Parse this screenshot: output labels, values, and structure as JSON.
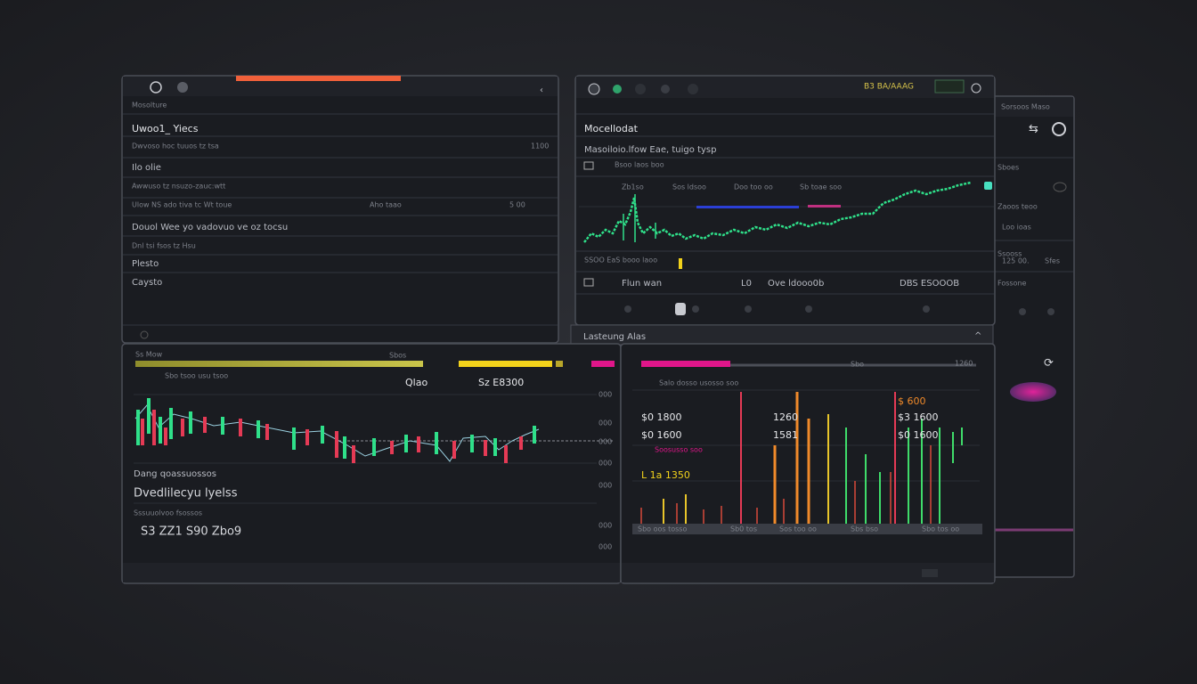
{
  "left_panel": {
    "tab": "Mosolture",
    "title": "Uwoo1_ Yiecs",
    "rows": [
      "Dwvoso hoc tuuos tz tsa",
      "Ilo olie",
      "Awwuso tz nsuzo-zauc:wtt",
      "Ulow NS ado tiva tc Wt toue",
      "Douol Wee yo vadovuo ve oz tocsu",
      "Dnl tsi fsos tz Hsu",
      "Plesto",
      "Caysto"
    ],
    "row_values": [
      "1100",
      "Aho taao",
      "5 00"
    ]
  },
  "market_panel": {
    "header_value": "B3 BA/AAAG",
    "title": "Mocellodat",
    "subtitle": "Masoiloio.lfow Eae, tuigo tysp",
    "caption": "Bsoo laos boo",
    "chart_labels": [
      "Zb1so",
      "Sos ldsoo",
      "Doo too oo",
      "Sb toae soo"
    ],
    "summary": "SSOO EaS booo laoo",
    "footer": [
      "Flun wan",
      "L0",
      "Ove ldooo0b",
      "DBS ESOOOB"
    ]
  },
  "side_panel": {
    "title": "Sorsoos Maso",
    "items": [
      "Sboes",
      "Zaoos teoo",
      "Loo ioas",
      "Ssooss"
    ],
    "values": [
      "125 00.",
      "Sfes"
    ],
    "footer": "Fossone"
  },
  "lower_header": "Lasteung Alas",
  "chart_left": {
    "tab": "Ss Mow",
    "tab_value": "Sbos",
    "caption": "Sbo tsoo usu tsoo",
    "labels": [
      "Qlao",
      "Sz E8300"
    ],
    "axis": [
      "000",
      "000",
      "000",
      "000",
      "000",
      "000",
      "000"
    ],
    "info": [
      "Dang qoassuossos",
      "Dvedlilecyu lyelss",
      "Sssuuolvoo fsossos",
      "S3 ZZ1 S90 Zbo9"
    ]
  },
  "chart_right": {
    "tab_value": "Sbo",
    "corner": "1260",
    "header": "Salo dosso usosso soo",
    "levels": [
      "$0 1800",
      "$0 1600",
      "L 1a 1350"
    ],
    "mid_levels": [
      "1260",
      "1581"
    ],
    "right_levels": [
      "$ 600",
      "$3 1600",
      "$0 1600"
    ],
    "caption": "Soosusso soo",
    "footer": [
      "Sbo oos tosso",
      "Sb0 tos",
      "Sos too oo",
      "Sbs bso",
      "Sbo tos oo"
    ]
  }
}
